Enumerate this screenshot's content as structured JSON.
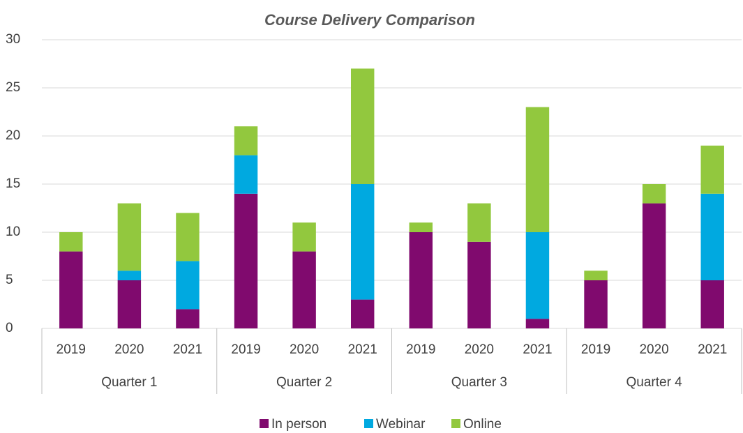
{
  "chart_data": {
    "type": "stacked_bar",
    "title": "Course Delivery Comparison",
    "categories": [
      "2019",
      "2020",
      "2021",
      "2019",
      "2020",
      "2021",
      "2019",
      "2020",
      "2021",
      "2019",
      "2020",
      "2021"
    ],
    "groups": [
      "Quarter 1",
      "Quarter 2",
      "Quarter 3",
      "Quarter 4"
    ],
    "series": [
      {
        "name": "In person",
        "color": "#800a6e",
        "values": [
          8,
          5,
          2,
          14,
          8,
          3,
          10,
          9,
          1,
          5,
          13,
          5
        ]
      },
      {
        "name": "Webinar",
        "color": "#00a9e0",
        "values": [
          0,
          1,
          5,
          4,
          0,
          12,
          0,
          0,
          9,
          0,
          0,
          9
        ]
      },
      {
        "name": "Online",
        "color": "#92c83e",
        "values": [
          2,
          7,
          5,
          3,
          3,
          12,
          1,
          4,
          13,
          1,
          2,
          5
        ]
      }
    ],
    "ylim": [
      0,
      30
    ],
    "yticks": [
      0,
      5,
      10,
      15,
      20,
      25,
      30
    ],
    "grid": true,
    "legend": "bottom"
  }
}
